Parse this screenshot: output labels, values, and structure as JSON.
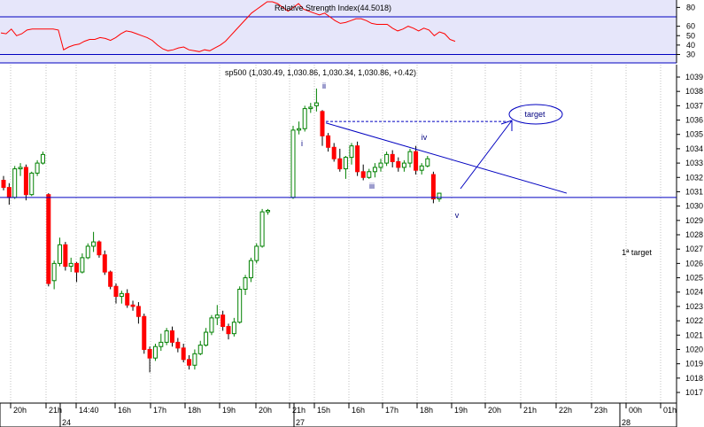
{
  "chart_data": [
    {
      "type": "line",
      "title": "Relative Strength Index(44.5018)",
      "ylim": [
        22,
        86
      ],
      "yticks": [
        30,
        40,
        50,
        60,
        80
      ],
      "levels": [
        30,
        70
      ],
      "values": [
        53,
        52,
        57,
        50,
        52,
        56,
        57,
        57,
        57,
        57,
        57,
        56,
        35,
        38,
        40,
        41,
        44,
        46,
        46,
        48,
        47,
        45,
        48,
        52,
        55,
        54,
        52,
        50,
        48,
        45,
        40,
        36,
        34,
        35,
        37,
        38,
        35,
        34,
        33,
        35,
        34,
        37,
        40,
        44,
        50,
        56,
        62,
        68,
        74,
        78,
        82,
        86,
        86,
        84,
        80,
        76,
        80,
        84,
        78,
        76,
        74,
        72,
        74,
        70,
        66,
        63,
        64,
        66,
        68,
        68,
        66,
        63,
        62,
        62,
        62,
        58,
        55,
        57,
        60,
        58,
        55,
        58,
        56,
        50,
        54,
        52,
        46,
        44
      ],
      "fill_color": "#e6e6fa",
      "line_color": "#ff0000"
    },
    {
      "type": "candlestick",
      "title": "sp500 (1,030.49, 1,030.86, 1,030.34, 1,030.86, +0.42)",
      "ylim": [
        1016,
        1040
      ],
      "yticks": [
        1017,
        1018,
        1019,
        1020,
        1021,
        1022,
        1023,
        1024,
        1025,
        1026,
        1027,
        1028,
        1029,
        1030,
        1031,
        1032,
        1033,
        1034,
        1035,
        1036,
        1037,
        1038,
        1039
      ],
      "xticks": [
        "20h",
        "21h",
        "14:40",
        "16h",
        "17h",
        "18h",
        "19h",
        "20h",
        "21h",
        "15h",
        "16h",
        "17h",
        "18h",
        "19h",
        "20h",
        "21h",
        "22h",
        "23h",
        "00h",
        "01h"
      ],
      "date_labels": [
        "24",
        "27",
        "28"
      ],
      "ohlc": [
        [
          1031.8,
          1032.1,
          1031.1,
          1031.3
        ],
        [
          1031.3,
          1031.6,
          1030.1,
          1030.6
        ],
        [
          1030.6,
          1032.8,
          1030.5,
          1032.6
        ],
        [
          1032.6,
          1033.0,
          1032.1,
          1032.7
        ],
        [
          1032.7,
          1032.9,
          1030.4,
          1030.8
        ],
        [
          1030.8,
          1032.4,
          1030.7,
          1032.3
        ],
        [
          1032.3,
          1033.2,
          1032.1,
          1033.0
        ],
        [
          1033.0,
          1033.8,
          1032.9,
          1033.6
        ],
        [
          1030.8,
          1030.9,
          1024.4,
          1024.6
        ],
        [
          1024.8,
          1026.2,
          1024.2,
          1026.0
        ],
        [
          1026.0,
          1027.8,
          1025.8,
          1027.3
        ],
        [
          1027.3,
          1027.5,
          1025.5,
          1025.8
        ],
        [
          1025.8,
          1026.4,
          1025.4,
          1026.0
        ],
        [
          1026.0,
          1026.1,
          1024.7,
          1025.4
        ],
        [
          1025.4,
          1026.7,
          1025.3,
          1026.4
        ],
        [
          1026.4,
          1027.4,
          1026.3,
          1027.2
        ],
        [
          1027.2,
          1028.2,
          1026.8,
          1027.5
        ],
        [
          1027.5,
          1027.6,
          1026.4,
          1026.6
        ],
        [
          1026.6,
          1026.9,
          1025.2,
          1025.4
        ],
        [
          1025.4,
          1025.5,
          1024.2,
          1024.4
        ],
        [
          1024.4,
          1024.6,
          1023.2,
          1023.7
        ],
        [
          1023.7,
          1024.1,
          1023.2,
          1023.9
        ],
        [
          1023.9,
          1024.2,
          1022.9,
          1023.1
        ],
        [
          1023.1,
          1023.4,
          1022.7,
          1023.0
        ],
        [
          1023.0,
          1023.3,
          1021.8,
          1022.3
        ],
        [
          1022.3,
          1022.5,
          1019.7,
          1020.0
        ],
        [
          1020.0,
          1020.2,
          1018.4,
          1019.4
        ],
        [
          1019.4,
          1020.4,
          1019.2,
          1020.2
        ],
        [
          1020.2,
          1021.1,
          1019.9,
          1020.5
        ],
        [
          1020.5,
          1021.5,
          1020.3,
          1021.3
        ],
        [
          1021.3,
          1021.6,
          1020.2,
          1020.5
        ],
        [
          1020.5,
          1020.8,
          1019.8,
          1020.1
        ],
        [
          1020.1,
          1020.4,
          1019.1,
          1019.3
        ],
        [
          1019.3,
          1019.6,
          1018.6,
          1018.9
        ],
        [
          1018.9,
          1020.0,
          1018.6,
          1019.7
        ],
        [
          1019.7,
          1020.6,
          1019.6,
          1020.3
        ],
        [
          1020.3,
          1021.5,
          1020.2,
          1021.2
        ],
        [
          1021.2,
          1022.4,
          1021.0,
          1022.2
        ],
        [
          1022.2,
          1023.1,
          1021.7,
          1022.4
        ],
        [
          1022.4,
          1022.7,
          1021.3,
          1021.6
        ],
        [
          1021.6,
          1021.8,
          1020.7,
          1021.1
        ],
        [
          1021.1,
          1022.2,
          1020.9,
          1021.9
        ],
        [
          1021.9,
          1024.4,
          1021.8,
          1024.2
        ],
        [
          1024.2,
          1025.2,
          1023.8,
          1025.0
        ],
        [
          1025.0,
          1026.4,
          1024.7,
          1026.2
        ],
        [
          1026.2,
          1027.4,
          1026.0,
          1027.2
        ],
        [
          1027.2,
          1029.8,
          1027.1,
          1029.6
        ],
        [
          1029.6,
          1029.8,
          1029.4,
          1029.7
        ],
        [
          1030.6,
          1035.6,
          1030.5,
          1035.3
        ],
        [
          1035.3,
          1035.9,
          1035.0,
          1035.4
        ],
        [
          1035.4,
          1037.0,
          1035.2,
          1036.8
        ],
        [
          1036.8,
          1037.2,
          1036.5,
          1036.9
        ],
        [
          1037.0,
          1038.2,
          1036.6,
          1037.2
        ],
        [
          1036.6,
          1036.7,
          1034.2,
          1034.9
        ],
        [
          1034.9,
          1035.1,
          1033.8,
          1034.1
        ],
        [
          1034.1,
          1034.4,
          1033.1,
          1033.3
        ],
        [
          1033.3,
          1034.0,
          1032.4,
          1032.6
        ],
        [
          1032.6,
          1033.5,
          1031.9,
          1033.4
        ],
        [
          1033.4,
          1034.4,
          1032.9,
          1034.2
        ],
        [
          1034.2,
          1034.5,
          1032.1,
          1032.4
        ],
        [
          1032.4,
          1032.9,
          1031.8,
          1032.0
        ],
        [
          1032.0,
          1032.6,
          1031.9,
          1032.4
        ],
        [
          1032.4,
          1033.0,
          1032.0,
          1032.7
        ],
        [
          1032.7,
          1033.3,
          1032.4,
          1033.0
        ],
        [
          1033.0,
          1033.8,
          1032.8,
          1033.6
        ],
        [
          1033.6,
          1033.9,
          1032.7,
          1033.1
        ],
        [
          1033.1,
          1033.4,
          1032.4,
          1032.7
        ],
        [
          1032.7,
          1033.2,
          1032.4,
          1033.0
        ],
        [
          1033.0,
          1034.0,
          1032.7,
          1033.8
        ],
        [
          1033.8,
          1034.2,
          1032.2,
          1032.5
        ],
        [
          1032.5,
          1033.0,
          1032.2,
          1032.8
        ],
        [
          1032.8,
          1033.5,
          1032.7,
          1033.3
        ],
        [
          1032.2,
          1032.4,
          1030.2,
          1030.5
        ],
        [
          1030.5,
          1030.9,
          1030.3,
          1030.9
        ]
      ],
      "support_level": 1030.6,
      "resistance_level": 1035.9,
      "wave_labels": [
        "i",
        "ii",
        "iii",
        "iv",
        "v"
      ],
      "annotations": {
        "target": "target",
        "first_target": "1ª target"
      },
      "up_color": "#008000",
      "down_color": "#ff0000",
      "line_color": "#0000c0"
    }
  ]
}
